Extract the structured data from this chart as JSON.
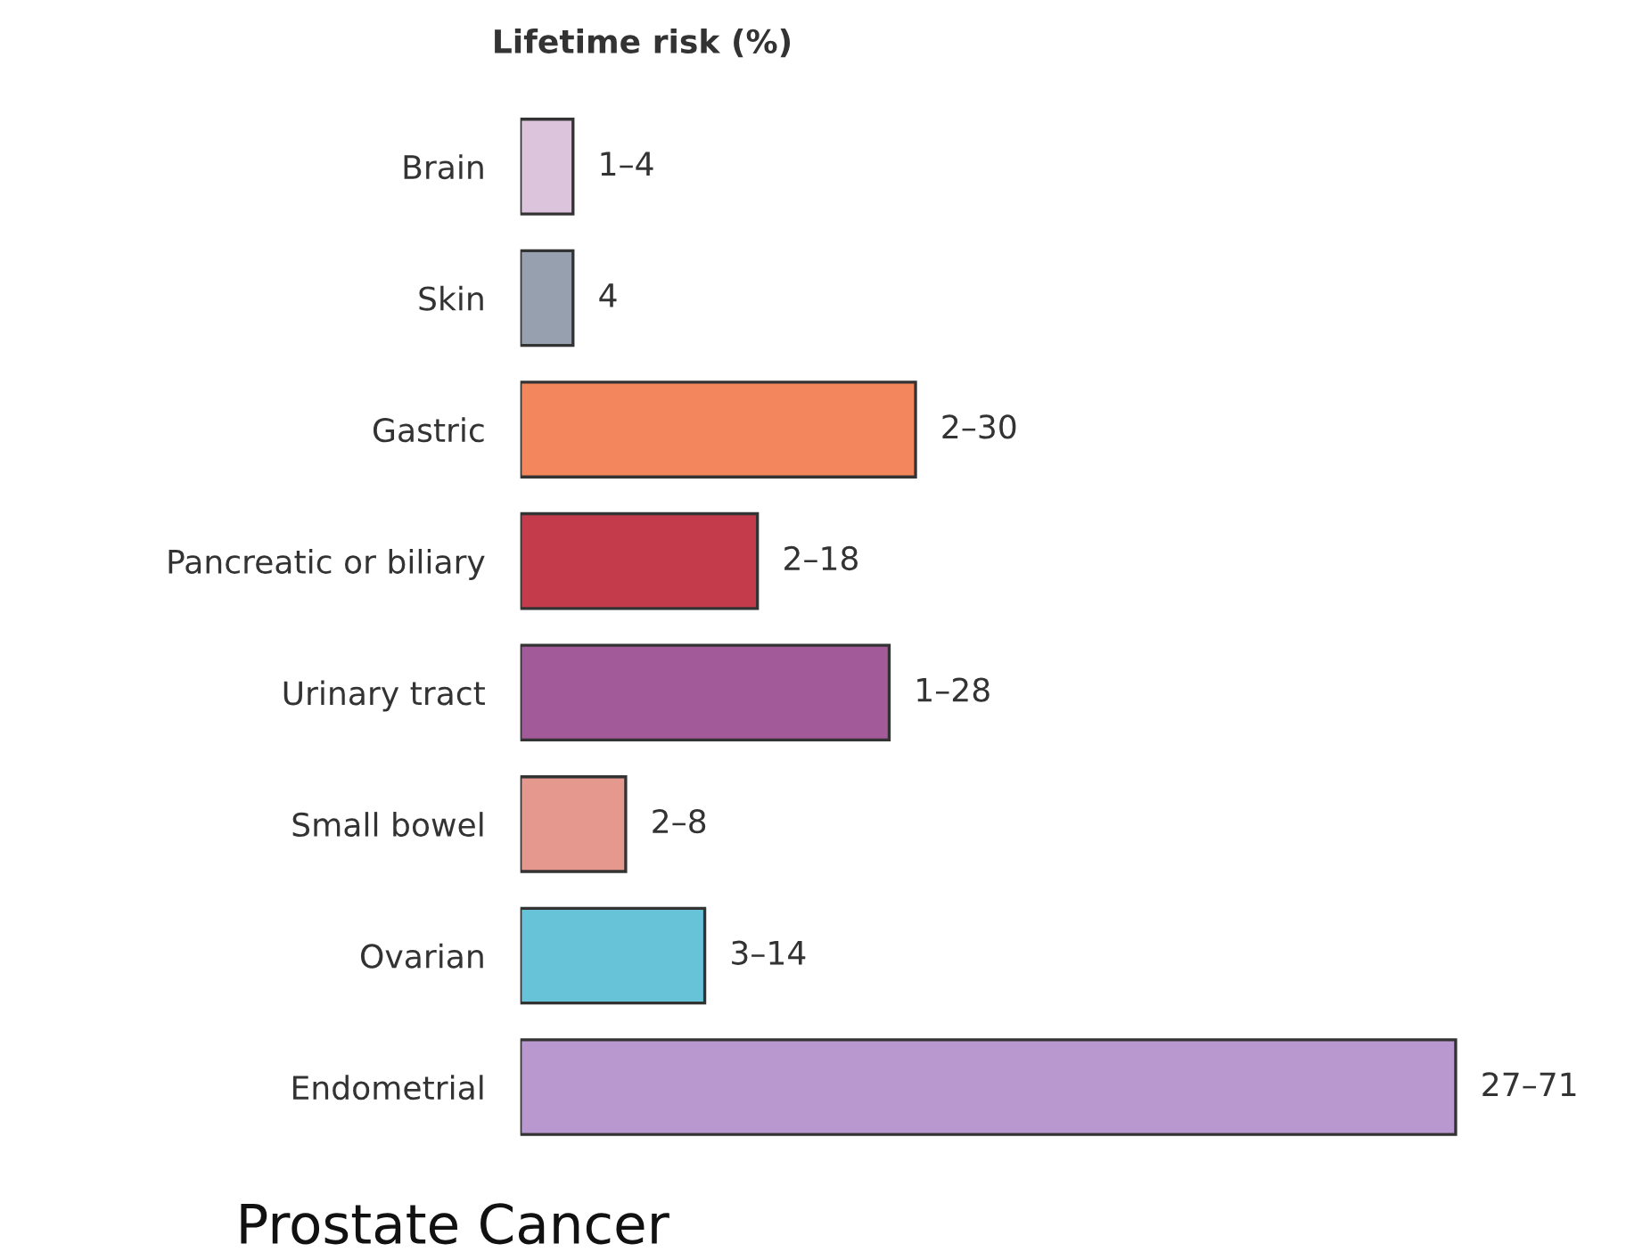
{
  "chart_data": {
    "type": "bar",
    "orientation": "horizontal",
    "title": "Lifetime risk (%)",
    "categories": [
      "Brain",
      "Skin",
      "Gastric",
      "Pancreatic or biliary",
      "Urinary tract",
      "Small bowel",
      "Ovarian",
      "Endometrial"
    ],
    "values": [
      4,
      4,
      30,
      18,
      28,
      8,
      14,
      71
    ],
    "value_labels": [
      "1–4",
      "4",
      "2–30",
      "2–18",
      "1–28",
      "2–8",
      "3–14",
      "27–71"
    ],
    "colors": [
      "#dcc4dc",
      "#96a0ae",
      "#f4865e",
      "#c43c4c",
      "#a25a98",
      "#e4988e",
      "#66c3d8",
      "#b898cf"
    ],
    "annotations": [
      "Prostate Cancer"
    ]
  }
}
